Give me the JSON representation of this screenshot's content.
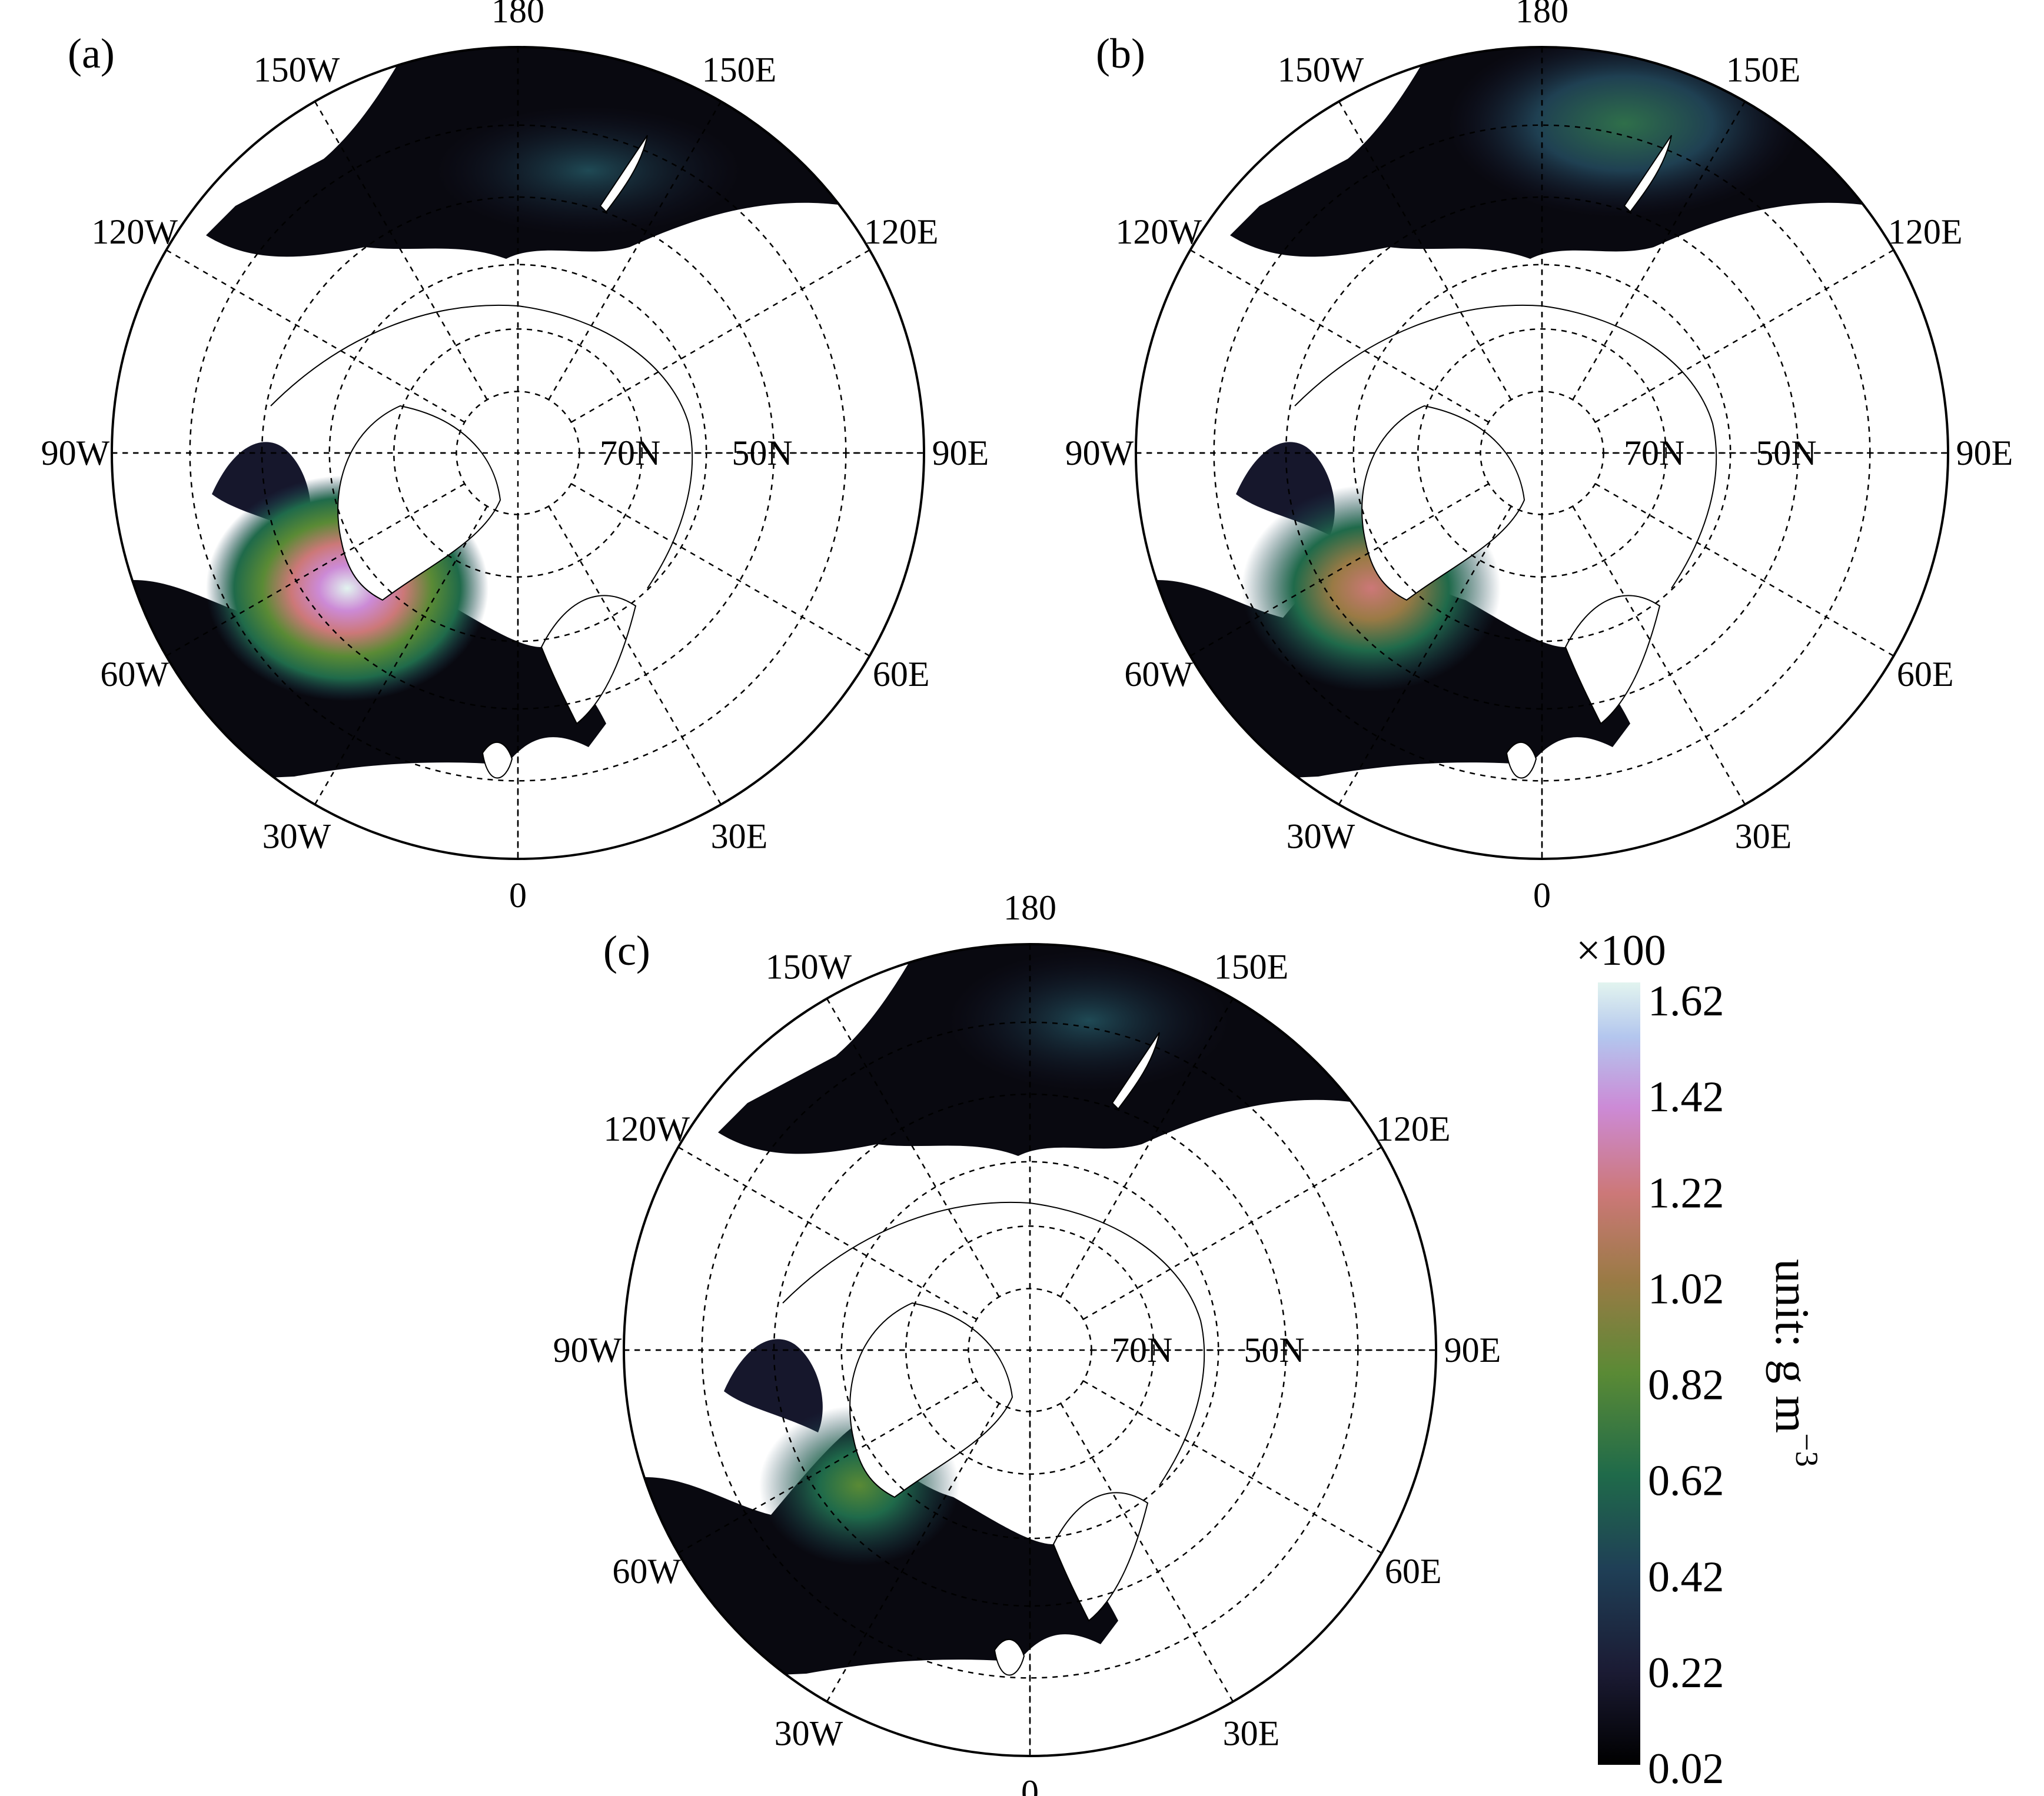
{
  "panels": [
    {
      "id": "a",
      "label": "(a)"
    },
    {
      "id": "b",
      "label": "(b)"
    },
    {
      "id": "c",
      "label": "(c)"
    }
  ],
  "longitude_labels": [
    "180",
    "150E",
    "120E",
    "90E",
    "60E",
    "30E",
    "0",
    "30W",
    "60W",
    "90W",
    "120W",
    "150W"
  ],
  "latitude_labels": [
    "70N",
    "50N"
  ],
  "map": {
    "projection": "north polar stereographic",
    "lon_gridlines": [
      0,
      30,
      60,
      90,
      120,
      150,
      180,
      210,
      240,
      270,
      300,
      330
    ],
    "lat_circles": [
      80,
      70,
      60,
      50,
      40
    ]
  },
  "colorbar": {
    "multiplier": "×100",
    "ticks": [
      "1.62",
      "1.42",
      "1.22",
      "1.02",
      "0.82",
      "0.62",
      "0.42",
      "0.22",
      "0.02"
    ],
    "range": [
      0.02,
      1.62
    ],
    "unit_label": "unit: g m",
    "unit_exponent": "−3",
    "colors": [
      "#000000",
      "#1b1b34",
      "#1f3f56",
      "#1f6a4a",
      "#5a8a35",
      "#9a7a45",
      "#cc7878",
      "#cc8ad6",
      "#b3c6ee",
      "#e2f4ef"
    ]
  }
}
